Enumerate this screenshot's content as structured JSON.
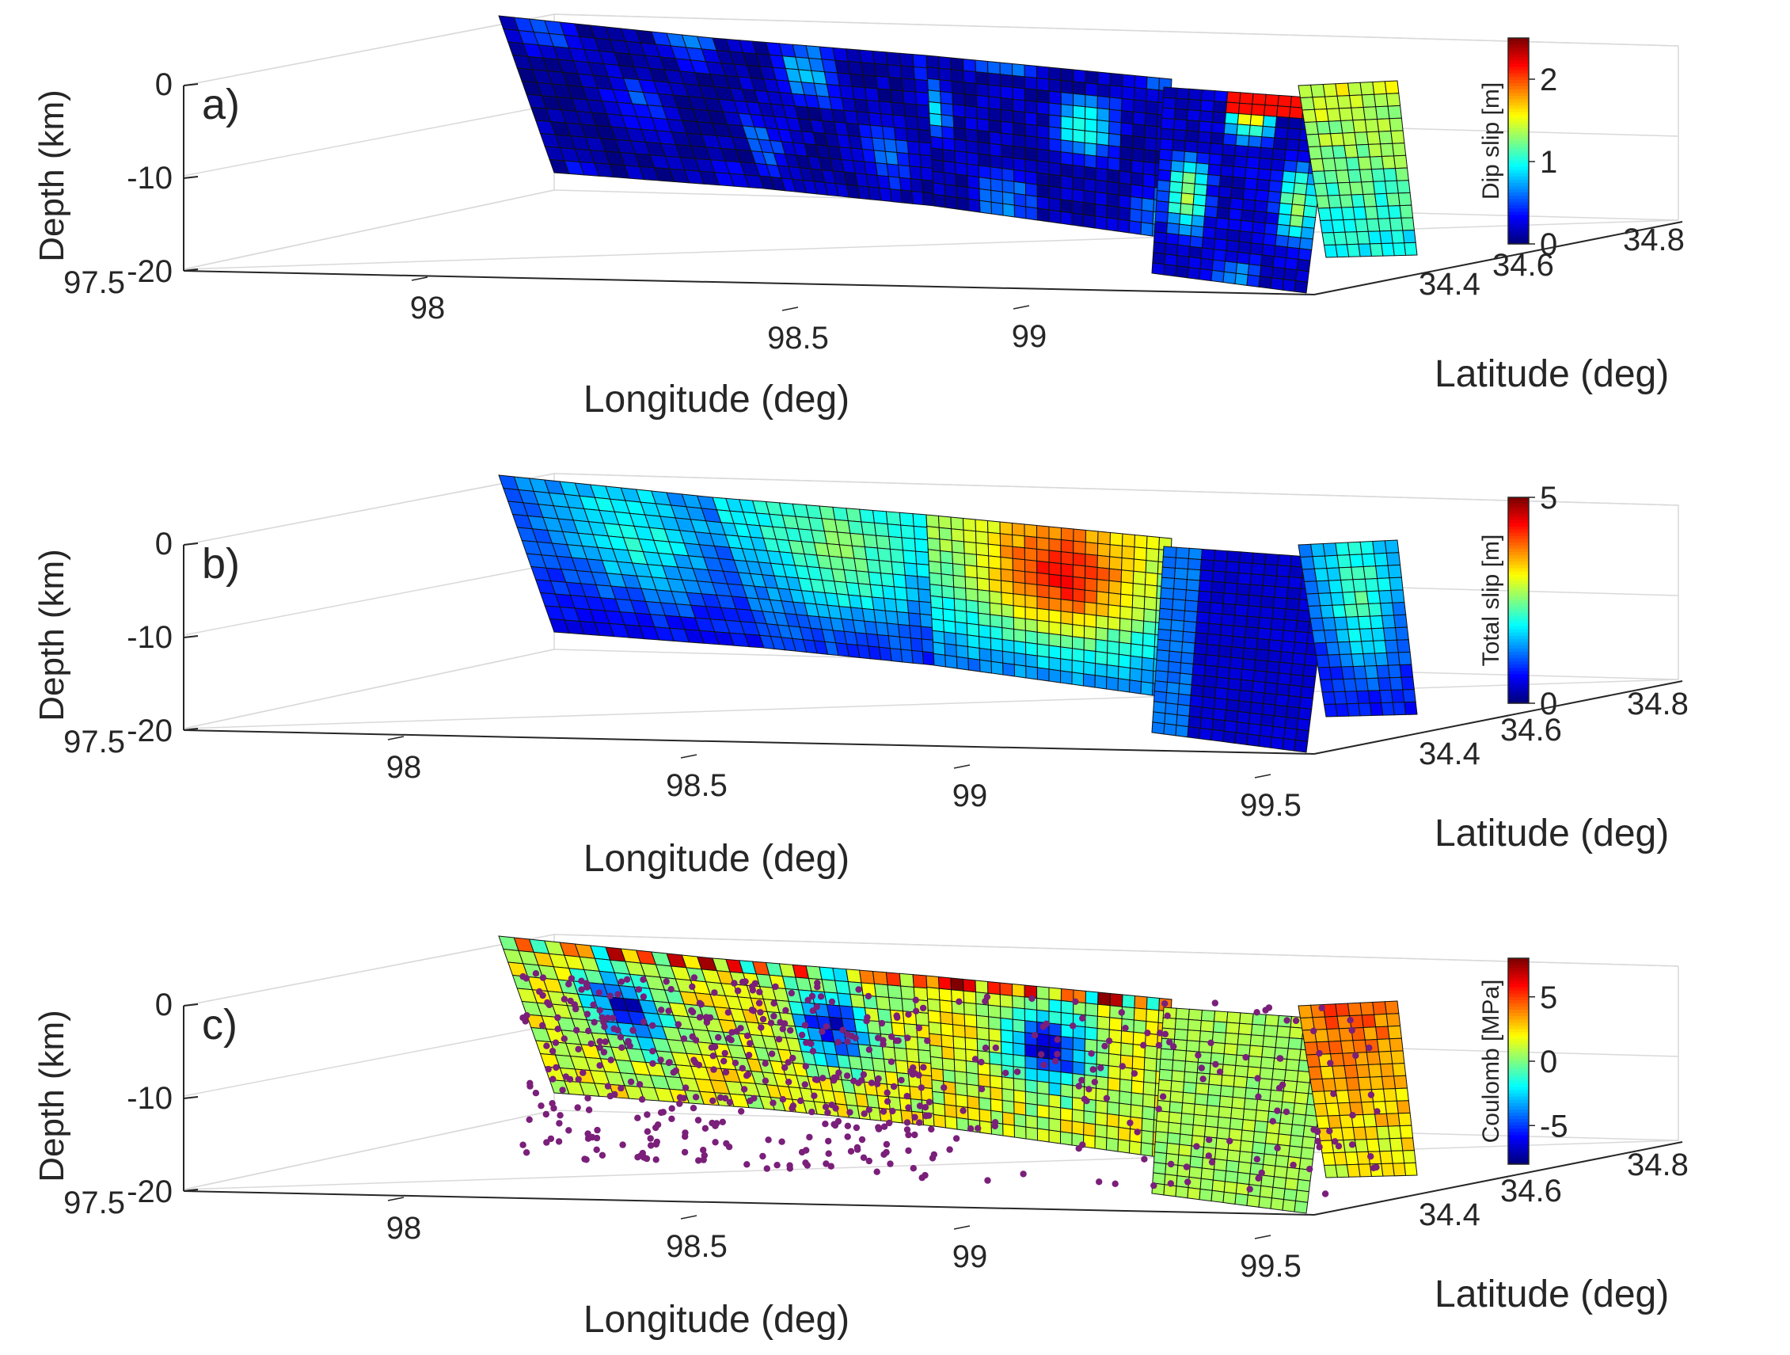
{
  "figure": {
    "panels": [
      {
        "label": "a)",
        "zlabel": "Depth (km)",
        "xlabel": "Longitude (deg)",
        "ylabel": "Latitude (deg)",
        "colorbar_label": "Dip slip [m]",
        "z_ticks": [
          "0",
          "-10",
          "-20"
        ],
        "x_ticks": [
          "97.5",
          "98",
          "98.5",
          "99"
        ],
        "y_ticks": [
          "34.4",
          "34.6",
          "34.8"
        ],
        "cbar_ticks": [
          "2",
          "1",
          "0"
        ]
      },
      {
        "label": "b)",
        "zlabel": "Depth (km)",
        "xlabel": "Longitude (deg)",
        "ylabel": "Latitude (deg)",
        "colorbar_label": "Total slip [m]",
        "z_ticks": [
          "0",
          "-10",
          "-20"
        ],
        "x_ticks": [
          "97.5",
          "98",
          "98.5",
          "99",
          "99.5"
        ],
        "y_ticks": [
          "34.4",
          "34.6",
          "34.8"
        ],
        "cbar_ticks": [
          "5",
          "0"
        ]
      },
      {
        "label": "c)",
        "zlabel": "Depth (km)",
        "xlabel": "Longitude (deg)",
        "ylabel": "Latitude (deg)",
        "colorbar_label": "Coulomb [MPa]",
        "z_ticks": [
          "0",
          "-10",
          "-20"
        ],
        "x_ticks": [
          "97.5",
          "98",
          "98.5",
          "99",
          "99.5"
        ],
        "y_ticks": [
          "34.4",
          "34.6",
          "34.8"
        ],
        "cbar_ticks": [
          "5",
          "0",
          "-5"
        ]
      }
    ]
  },
  "chart_data": [
    {
      "type": "heatmap",
      "panel": "a)",
      "quantity": "Dip slip [m]",
      "colormap": "jet",
      "clim": [
        0,
        2.5
      ],
      "xlabel": "Longitude (deg)",
      "ylabel": "Latitude (deg)",
      "zlabel": "Depth (km)",
      "xlim": [
        97.5,
        99.7
      ],
      "ylim": [
        34.3,
        34.9
      ],
      "zlim": [
        -20,
        5
      ],
      "fault_segments": [
        {
          "lon_range": [
            97.95,
            98.3
          ],
          "depth_range": [
            0,
            -12
          ],
          "peak_value": 0.8,
          "mean_value": 0.2
        },
        {
          "lon_range": [
            98.3,
            98.8
          ],
          "depth_range": [
            0,
            -14
          ],
          "peak_value": 1.1,
          "mean_value": 0.3
        },
        {
          "lon_range": [
            98.8,
            99.25
          ],
          "depth_range": [
            0,
            -15
          ],
          "peak_value": 1.6,
          "mean_value": 0.35
        },
        {
          "lon_range": [
            99.25,
            99.55
          ],
          "depth_range": [
            0,
            -20
          ],
          "peak_value": 2.4,
          "mean_value": 0.5
        },
        {
          "lon_range": [
            99.45,
            99.6
          ],
          "depth_range": [
            0,
            -20
          ],
          "peak_value": 1.8,
          "mean_value": 0.9
        }
      ]
    },
    {
      "type": "heatmap",
      "panel": "b)",
      "quantity": "Total slip [m]",
      "colormap": "jet",
      "clim": [
        0,
        5
      ],
      "xlabel": "Longitude (deg)",
      "ylabel": "Latitude (deg)",
      "zlabel": "Depth (km)",
      "xlim": [
        97.5,
        99.7
      ],
      "ylim": [
        34.3,
        34.9
      ],
      "zlim": [
        -20,
        5
      ],
      "fault_segments": [
        {
          "lon_range": [
            97.95,
            98.3
          ],
          "depth_range": [
            0,
            -12
          ],
          "peak_value": 2.2,
          "mean_value": 1.2
        },
        {
          "lon_range": [
            98.3,
            98.8
          ],
          "depth_range": [
            0,
            -14
          ],
          "peak_value": 2.8,
          "mean_value": 1.8
        },
        {
          "lon_range": [
            98.8,
            99.25
          ],
          "depth_range": [
            0,
            -15
          ],
          "peak_value": 4.8,
          "mean_value": 2.6
        },
        {
          "lon_range": [
            99.25,
            99.55
          ],
          "depth_range": [
            0,
            -20
          ],
          "peak_value": 1.0,
          "mean_value": 0.4
        },
        {
          "lon_range": [
            99.45,
            99.6
          ],
          "depth_range": [
            0,
            -20
          ],
          "peak_value": 2.5,
          "mean_value": 1.3
        }
      ]
    },
    {
      "type": "heatmap",
      "panel": "c)",
      "quantity": "Coulomb [MPa]",
      "colormap": "jet",
      "clim": [
        -8,
        8
      ],
      "xlabel": "Longitude (deg)",
      "ylabel": "Latitude (deg)",
      "zlabel": "Depth (km)",
      "xlim": [
        97.5,
        99.7
      ],
      "ylim": [
        34.3,
        34.9
      ],
      "zlim": [
        -20,
        5
      ],
      "fault_segments": [
        {
          "lon_range": [
            97.95,
            98.3
          ],
          "depth_range": [
            0,
            -12
          ],
          "peak_value": 7,
          "min_value": -6,
          "mean_value": 0.5
        },
        {
          "lon_range": [
            98.3,
            98.8
          ],
          "depth_range": [
            0,
            -14
          ],
          "peak_value": 7,
          "min_value": -7,
          "mean_value": 0.5
        },
        {
          "lon_range": [
            98.8,
            99.25
          ],
          "depth_range": [
            0,
            -15
          ],
          "peak_value": 7,
          "min_value": -7,
          "mean_value": 0.5
        },
        {
          "lon_range": [
            99.25,
            99.55
          ],
          "depth_range": [
            0,
            -20
          ],
          "peak_value": 2,
          "min_value": -1,
          "mean_value": 0.8
        },
        {
          "lon_range": [
            99.45,
            99.6
          ],
          "depth_range": [
            0,
            -20
          ],
          "peak_value": 6,
          "min_value": -3,
          "mean_value": 2
        }
      ],
      "scatter": {
        "description": "aftershock hypocenters",
        "color": "#7a1f7a",
        "lon_range": [
          97.95,
          99.6
        ],
        "depth_range": [
          -1,
          -15
        ],
        "dense_lon_range": [
          98.0,
          98.6
        ]
      }
    }
  ]
}
